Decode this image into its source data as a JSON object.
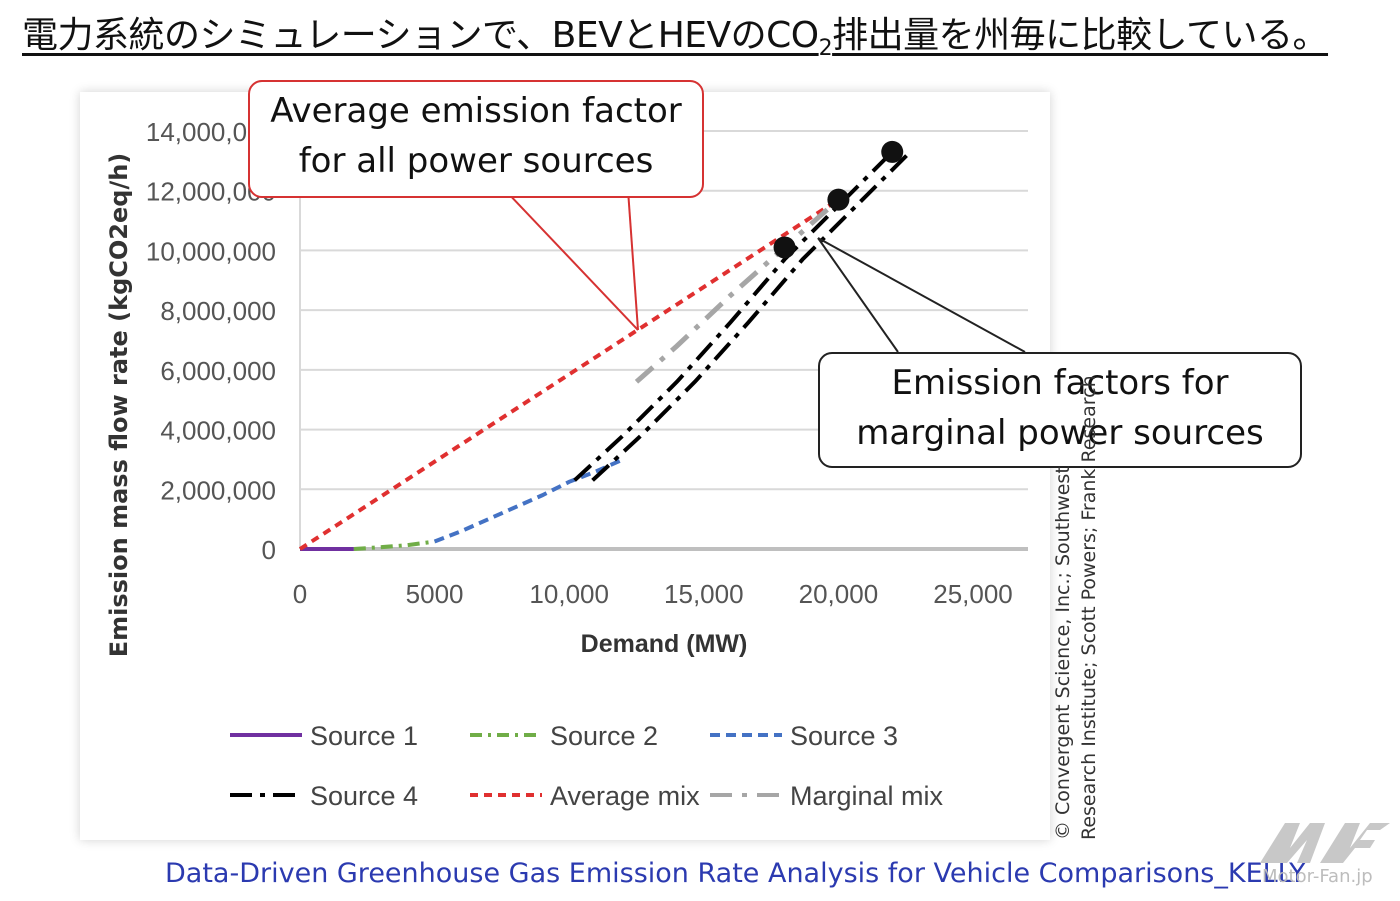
{
  "header": {
    "title_part1": "電力系統のシミュレーションで、BEVとHEVのCO",
    "title_sub": "2",
    "title_part2": "排出量を州毎に比較している。"
  },
  "callouts": {
    "average": [
      "Average emission factor",
      "for all power sources"
    ],
    "marginal": [
      "Emission factors for",
      "marginal power sources"
    ]
  },
  "copyright": {
    "line1": "© Convergent Science, Inc.; Southwest",
    "line2": "Research Institute; Scott Powers; Frank Research"
  },
  "caption": "Data-Driven Greenhouse Gas Emission Rate Analysis for Vehicle Comparisons_KELLY",
  "watermark": "Motor-Fan.jp",
  "colors": {
    "source1": "#7030a0",
    "source2": "#70ad47",
    "source3": "#4472c4",
    "source4": "#000000",
    "average": "#e03030",
    "marginal": "#a6a6a6",
    "caption": "#2b3ab0"
  },
  "chart_data": {
    "type": "line",
    "xlabel": "Demand (MW)",
    "ylabel": "Emission mass flow rate  (kgCO2eq/h)",
    "xlim": [
      0,
      27000
    ],
    "ylim": [
      0,
      14000000
    ],
    "x_ticks": [
      0,
      5000,
      10000,
      15000,
      20000,
      25000
    ],
    "x_tick_labels": [
      "0",
      "5000",
      "10,000",
      "15,000",
      "20,000",
      "25,000"
    ],
    "y_ticks": [
      0,
      2000000,
      4000000,
      6000000,
      8000000,
      10000000,
      12000000,
      14000000
    ],
    "y_tick_labels": [
      "0",
      "2,000,000",
      "4,000,000",
      "6,000,000",
      "8,000,000",
      "10,000,000",
      "12,000,000",
      "14,000,000"
    ],
    "grid": "horizontal",
    "legend_position": "bottom",
    "series": [
      {
        "name": "Source 1",
        "style": "solid",
        "x": [
          0,
          2000
        ],
        "y": [
          0,
          0
        ]
      },
      {
        "name": "Source 2",
        "style": "dashdot",
        "x": [
          2000,
          3000,
          4000,
          5000
        ],
        "y": [
          0,
          60000,
          130000,
          250000
        ]
      },
      {
        "name": "Source 3",
        "style": "dash",
        "x": [
          5000,
          6000,
          7000,
          8000,
          9000,
          10000,
          11000,
          12000
        ],
        "y": [
          250000,
          600000,
          1000000,
          1400000,
          1800000,
          2250000,
          2600000,
          3000000
        ]
      },
      {
        "name": "Source 4",
        "style": "dashdot",
        "x": [
          10200,
          12000,
          14000,
          16000,
          18000,
          20000,
          22000
        ],
        "y": [
          2300000,
          3800000,
          5600000,
          7600000,
          9700000,
          11500000,
          13300000
        ]
      },
      {
        "name": "Average mix",
        "style": "dash",
        "x": [
          0,
          20000
        ],
        "y": [
          0,
          11700000
        ]
      },
      {
        "name": "Marginal mix",
        "style": "dashdot",
        "x": [
          12500,
          14000,
          16000,
          18000,
          20000
        ],
        "y": [
          5600000,
          6800000,
          8500000,
          10100000,
          11700000
        ]
      }
    ],
    "markers": {
      "x": [
        18000,
        20000,
        22000
      ],
      "y": [
        10100000,
        11700000,
        13300000
      ]
    }
  }
}
